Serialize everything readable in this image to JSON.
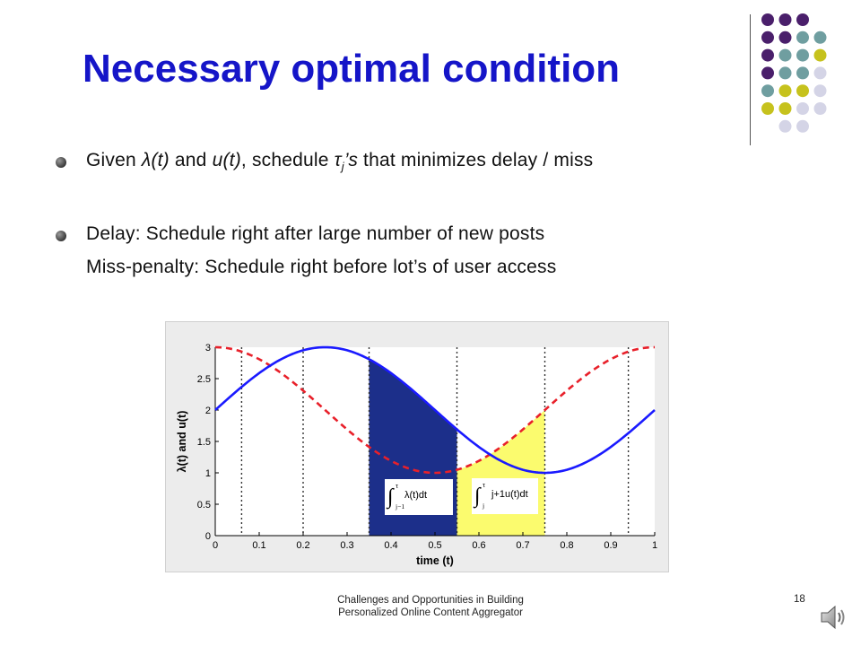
{
  "slide": {
    "title": "Necessary optimal condition",
    "footer_line1": "Challenges and Opportunities in Building",
    "footer_line2": "Personalized Online Content Aggregator",
    "page_number": "18"
  },
  "bullets": [
    {
      "prefix": "Given ",
      "lambda": "λ(t)",
      "and": " and ",
      "u": "u(t)",
      "mid": ", schedule ",
      "tau": "τ",
      "sub": "j",
      "tau_suffix": "’s",
      "rest": " that minimizes delay / miss"
    },
    {
      "line1": "Delay: Schedule right after large number of new posts",
      "line2": "Miss-penalty: Schedule right before lot’s of user access"
    }
  ],
  "decor": {
    "dot_colors": {
      "purple": "#4a1f6b",
      "teal": "#6f9ea0",
      "olive": "#c6c21d",
      "lavender": "#d4d4e6"
    },
    "icon": "speaker-icon"
  },
  "chart_data": {
    "type": "line",
    "xlabel": "time (t)",
    "ylabel": "λ(t) and u(t)",
    "xlim": [
      0,
      1
    ],
    "ylim": [
      0,
      3
    ],
    "xticks": [
      "0",
      "0.1",
      "0.2",
      "0.3",
      "0.4",
      "0.5",
      "0.6",
      "0.7",
      "0.8",
      "0.9",
      "1"
    ],
    "yticks": [
      "0",
      "0.5",
      "1",
      "1.5",
      "2",
      "2.5",
      "3"
    ],
    "colors": {
      "blue": "#1a1aff",
      "red": "#e8202a",
      "navy": "#1c2f8a",
      "yellow": "#fbfb6e"
    },
    "series": [
      {
        "style": "solid blue",
        "x": [
          0,
          0.1,
          0.2,
          0.25,
          0.3,
          0.4,
          0.5,
          0.55,
          0.6,
          0.7,
          0.75,
          0.8,
          0.9,
          1
        ],
        "y": [
          2.0,
          2.59,
          2.95,
          3.0,
          2.95,
          2.59,
          2.0,
          1.69,
          1.41,
          1.05,
          1.0,
          1.05,
          1.41,
          2.0
        ]
      },
      {
        "style": "dashed red",
        "x": [
          0,
          0.1,
          0.2,
          0.3,
          0.4,
          0.5,
          0.55,
          0.6,
          0.7,
          0.8,
          0.9,
          1
        ],
        "y": [
          3.0,
          2.81,
          2.31,
          1.69,
          1.19,
          1.0,
          1.05,
          1.19,
          1.69,
          2.31,
          2.81,
          3.0
        ]
      }
    ],
    "vertical_dotted_lines": [
      0.06,
      0.2,
      0.35,
      0.55,
      0.75,
      0.94
    ],
    "shaded_regions": [
      {
        "from": 0.35,
        "to": 0.55,
        "under": "solid blue",
        "color": "navy",
        "label_int": "∫",
        "label_upper": "τ",
        "label_lower": "j−1",
        "label_expr": "λ(t)dt"
      },
      {
        "from": 0.55,
        "to": 0.75,
        "under": "dashed red",
        "color": "yellow",
        "label_int": "∫",
        "label_upper": "τ",
        "label_lower": "j",
        "label_expr": "j+1u(t)dt"
      }
    ]
  }
}
